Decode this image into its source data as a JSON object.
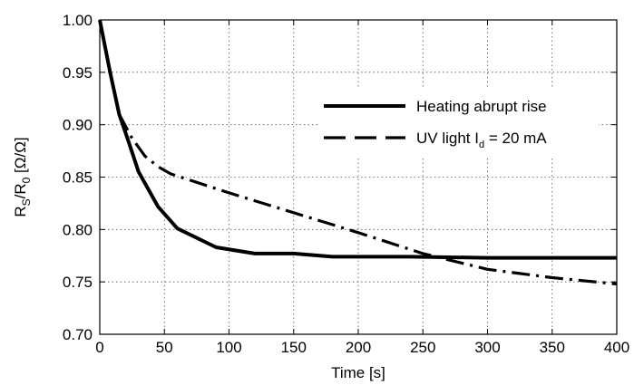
{
  "chart_data": {
    "type": "line",
    "title": "",
    "xlabel": "Time [s]",
    "ylabel": {
      "parts": [
        {
          "text": "R",
          "shift": "none"
        },
        {
          "text": "S",
          "shift": "sub"
        },
        {
          "text": "/R",
          "shift": "none"
        },
        {
          "text": "0",
          "shift": "sub"
        },
        {
          "text": " [Ω/Ω]",
          "shift": "none"
        }
      ]
    },
    "xlim": [
      0,
      400
    ],
    "ylim": [
      0.7,
      1.0
    ],
    "xticks": [
      "0",
      "50",
      "100",
      "150",
      "200",
      "250",
      "300",
      "350",
      "400"
    ],
    "yticks": [
      "0.70",
      "0.75",
      "0.80",
      "0.85",
      "0.90",
      "0.95",
      "1.00"
    ],
    "grid": true,
    "grid_style": "dotted",
    "legend_position": "upper-right",
    "series": [
      {
        "name": "Heating abrupt rise",
        "line_style": "solid",
        "color": "#000000",
        "x": [
          0,
          8,
          15,
          22,
          30,
          45,
          60,
          90,
          120,
          150,
          180,
          240,
          300,
          400
        ],
        "y": [
          1.0,
          0.95,
          0.91,
          0.885,
          0.855,
          0.822,
          0.801,
          0.783,
          0.777,
          0.777,
          0.774,
          0.774,
          0.773,
          0.773
        ]
      },
      {
        "name": "UV light I_d = 20 mA",
        "legend_parts": [
          {
            "text": "UV light I",
            "shift": "none"
          },
          {
            "text": "d",
            "shift": "sub"
          },
          {
            "text": " = 20 mA",
            "shift": "none"
          }
        ],
        "line_style": "dash-dot",
        "color": "#000000",
        "x": [
          15,
          25,
          35,
          45,
          55,
          100,
          150,
          200,
          250,
          300,
          350,
          400
        ],
        "y": [
          0.91,
          0.887,
          0.87,
          0.86,
          0.853,
          0.835,
          0.816,
          0.797,
          0.777,
          0.762,
          0.754,
          0.748
        ]
      }
    ]
  }
}
